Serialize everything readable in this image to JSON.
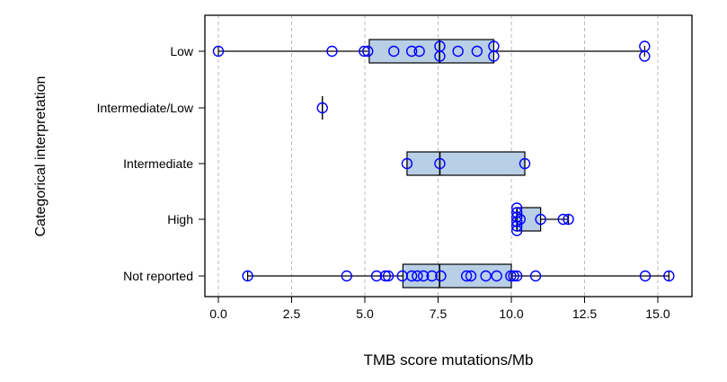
{
  "chart_data": {
    "type": "boxplot",
    "title": "",
    "xlabel": "TMB score mutations/Mb",
    "ylabel": "Categorical interpretation",
    "xlim": [
      -0.4,
      15.9
    ],
    "xticks": [
      "0.0",
      "2.5",
      "5.0",
      "7.5",
      "10.0",
      "12.5",
      "15.0"
    ],
    "xtick_values": [
      0,
      2.5,
      5,
      7.5,
      10,
      12.5,
      15
    ],
    "grid": "vertical dashed",
    "colors": {
      "box_fill": "#b8cfe6",
      "point": "#0000ff",
      "line": "#000000",
      "grid": "#bbbbbb"
    },
    "categories": [
      "Low",
      "Intermediate/Low",
      "Intermediate",
      "High",
      "Not reported"
    ],
    "boxes": [
      {
        "category": "Low",
        "min": 0.0,
        "q1": 5.15,
        "median": 7.55,
        "q3": 9.4,
        "max": 14.55,
        "points": [
          0.0,
          3.88,
          4.98,
          5.1,
          5.99,
          6.6,
          6.86,
          7.56,
          7.56,
          8.18,
          8.83,
          9.4,
          9.4,
          14.55,
          14.55
        ]
      },
      {
        "category": "Intermediate/Low",
        "min": 3.55,
        "q1": 3.55,
        "median": 3.55,
        "q3": 3.55,
        "max": 3.55,
        "points": [
          3.55
        ]
      },
      {
        "category": "Intermediate",
        "min": 6.44,
        "q1": 6.44,
        "median": 7.56,
        "q3": 10.46,
        "max": 10.46,
        "points": [
          6.44,
          7.56,
          10.46
        ]
      },
      {
        "category": "High",
        "min": 10.19,
        "q1": 10.19,
        "median": 10.19,
        "q3": 11.0,
        "max": 11.95,
        "points": [
          10.19,
          10.19,
          10.19,
          10.19,
          10.19,
          10.19,
          10.3,
          11.0,
          11.77,
          11.95
        ]
      },
      {
        "category": "Not reported",
        "min": 1.0,
        "q1": 6.3,
        "median": 7.55,
        "q3": 10.0,
        "max": 15.38,
        "points": [
          1.0,
          4.38,
          5.4,
          5.7,
          5.8,
          6.28,
          6.6,
          6.79,
          7.0,
          7.29,
          7.59,
          8.47,
          8.62,
          9.13,
          9.5,
          9.98,
          10.08,
          10.19,
          10.83,
          14.57,
          15.38
        ]
      }
    ]
  }
}
